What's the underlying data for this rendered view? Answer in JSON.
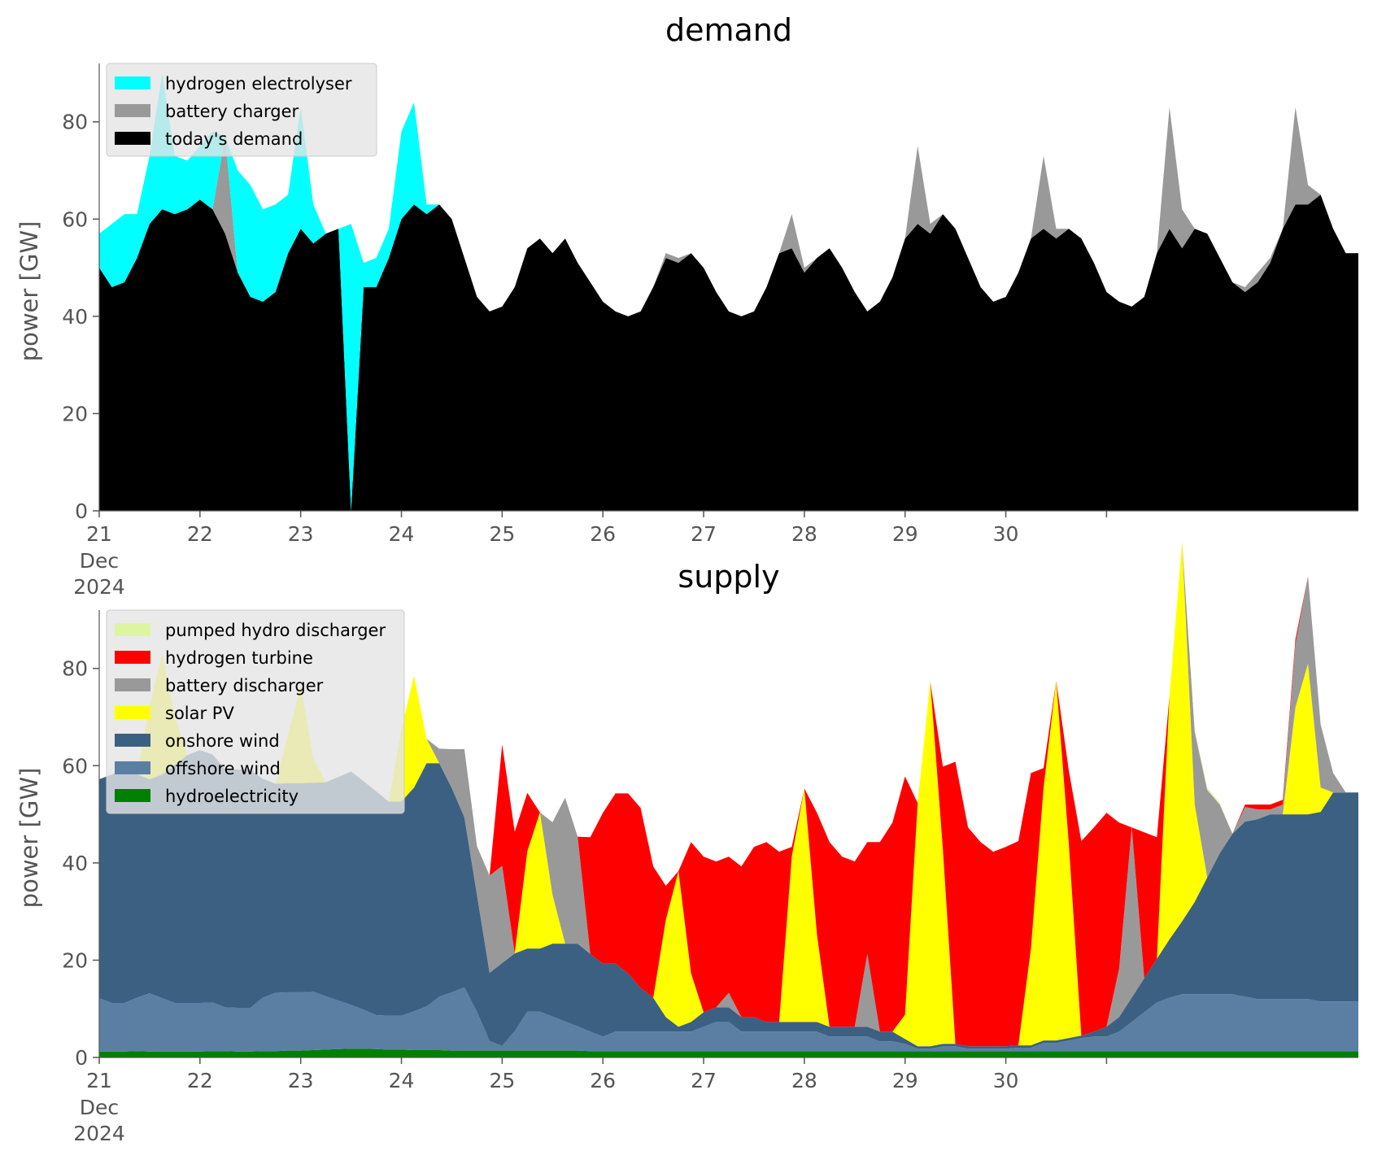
{
  "chart_data": [
    {
      "type": "area",
      "title": "demand",
      "ylabel": "power [GW]",
      "xlabel": "",
      "ylim": [
        0,
        92
      ],
      "yticks": [
        "0",
        "20",
        "40",
        "60",
        "80"
      ],
      "x_start": "2024-12-21T00:00",
      "x_step_hours": 3,
      "xticks": [
        "21",
        "22",
        "23",
        "24",
        "25",
        "26",
        "27",
        "28",
        "29",
        "30"
      ],
      "xtick_sub": [
        "Dec",
        "2024"
      ],
      "grid": false,
      "legend_position": "top-left",
      "series": [
        {
          "name": "today's demand",
          "color": "#000000",
          "values": [
            50,
            46,
            47,
            52,
            59,
            62,
            61,
            62,
            64,
            62,
            57,
            49,
            44,
            43,
            45,
            53,
            58,
            55,
            57,
            58,
            0,
            46,
            46,
            52,
            60,
            63,
            61,
            63,
            60,
            52,
            44,
            41,
            42,
            46,
            54,
            56,
            53,
            56,
            51,
            47,
            43,
            41,
            40,
            41,
            46,
            52,
            51,
            53,
            50,
            45,
            41,
            40,
            41,
            46,
            53,
            54,
            49,
            52,
            54,
            50,
            45,
            41,
            43,
            48,
            56,
            59,
            57,
            61,
            58,
            52,
            46,
            43,
            44,
            49,
            56,
            58,
            56,
            58,
            56,
            51,
            45,
            43,
            42,
            44,
            53,
            58,
            54,
            58,
            57,
            52,
            47,
            45,
            47,
            51,
            58,
            63,
            63,
            65,
            58,
            53
          ]
        },
        {
          "name": "battery charger",
          "color": "#999999",
          "values": [
            0,
            0,
            0,
            0,
            0,
            0,
            0,
            0,
            0,
            0,
            20,
            0,
            0,
            0,
            0,
            0,
            0,
            0,
            0,
            0,
            0,
            0,
            0,
            0,
            0,
            0,
            0,
            0,
            0,
            0,
            0,
            0,
            0,
            0,
            0,
            0,
            0,
            0,
            0,
            0,
            0,
            0,
            0,
            0,
            0,
            1,
            1,
            0,
            0,
            0,
            0,
            0,
            0,
            0,
            0,
            7,
            1,
            0,
            0,
            0,
            0,
            0,
            0,
            0,
            0,
            16,
            2,
            0,
            0,
            0,
            0,
            0,
            0,
            0,
            0,
            15,
            2,
            0,
            0,
            0,
            0,
            0,
            0,
            0,
            0,
            25,
            8,
            0,
            0,
            0,
            0,
            1,
            2,
            1,
            0,
            20,
            4,
            0,
            0,
            0
          ]
        },
        {
          "name": "hydrogen electrolyser",
          "color": "#00ffff",
          "values": [
            7,
            13,
            14,
            9,
            14,
            28,
            12,
            10,
            11,
            16,
            0,
            21,
            23,
            19,
            18,
            12,
            25,
            8,
            0,
            0,
            59,
            5,
            6,
            6,
            18,
            21,
            2,
            0,
            0,
            0,
            0,
            0,
            0,
            0,
            0,
            0,
            0,
            0,
            0,
            0,
            0,
            0,
            0,
            0,
            0,
            0,
            0,
            0,
            0,
            0,
            0,
            0,
            0,
            0,
            0,
            0,
            0,
            0,
            0,
            0,
            0,
            0,
            0,
            0,
            0,
            0,
            0,
            0,
            0,
            0,
            0,
            0,
            0,
            0,
            0,
            0,
            0,
            0,
            0,
            0,
            0,
            0,
            0,
            0,
            0,
            0,
            0,
            0,
            0,
            0,
            0,
            0,
            0,
            0,
            0,
            0,
            0,
            0,
            0,
            0
          ]
        }
      ]
    },
    {
      "type": "area",
      "title": "supply",
      "ylabel": "power [GW]",
      "xlabel": "",
      "ylim": [
        0,
        92
      ],
      "yticks": [
        "0",
        "20",
        "40",
        "60",
        "80"
      ],
      "x_start": "2024-12-21T00:00",
      "x_step_hours": 3,
      "xticks": [
        "21",
        "22",
        "23",
        "24",
        "25",
        "26",
        "27",
        "28",
        "29",
        "30"
      ],
      "xtick_sub": [
        "Dec",
        "2024"
      ],
      "grid": false,
      "legend_position": "top-left",
      "series": [
        {
          "name": "hydroelectricity",
          "color": "#008000",
          "values": [
            1.2,
            1.2,
            1.2,
            1.3,
            1.2,
            1.2,
            1.2,
            1.2,
            1.2,
            1.3,
            1.3,
            1.2,
            1.2,
            1.3,
            1.3,
            1.4,
            1.4,
            1.5,
            1.6,
            1.7,
            1.8,
            1.8,
            1.7,
            1.6,
            1.6,
            1.5,
            1.5,
            1.5,
            1.4,
            1.4,
            1.4,
            1.4,
            1.4,
            1.4,
            1.4,
            1.4,
            1.4,
            1.4,
            1.4,
            1.3,
            1.3,
            1.3,
            1.3,
            1.3,
            1.3,
            1.3,
            1.3,
            1.3,
            1.3,
            1.3,
            1.3,
            1.3,
            1.3,
            1.3,
            1.3,
            1.3,
            1.3,
            1.3,
            1.3,
            1.3,
            1.3,
            1.3,
            1.3,
            1.3,
            1.3,
            1.3,
            1.3,
            1.3,
            1.3,
            1.3,
            1.3,
            1.3,
            1.3,
            1.3,
            1.3,
            1.3,
            1.3,
            1.3,
            1.3,
            1.3,
            1.3,
            1.3,
            1.3,
            1.3,
            1.3,
            1.3,
            1.3,
            1.3,
            1.3,
            1.3,
            1.3,
            1.3,
            1.3,
            1.3,
            1.3,
            1.3,
            1.3,
            1.3,
            1.3,
            1.3
          ]
        },
        {
          "name": "offshore wind",
          "color": "#5b7fa3",
          "values": [
            11,
            10,
            10,
            11,
            12,
            11,
            10,
            10,
            10,
            10,
            9,
            9,
            9,
            11,
            12,
            12,
            12,
            12,
            11,
            10,
            9,
            8,
            7,
            7,
            7,
            8,
            9,
            11,
            12,
            13,
            8,
            2,
            1,
            4,
            8,
            8,
            7,
            6,
            5,
            4,
            3,
            4,
            4,
            4,
            4,
            4,
            4,
            4,
            5,
            6,
            6,
            4,
            4,
            4,
            4,
            4,
            4,
            4,
            3,
            3,
            3,
            3,
            2,
            2,
            1.5,
            0.5,
            0.5,
            1,
            1,
            0.5,
            0.5,
            0.5,
            0.5,
            0.7,
            0.7,
            1.7,
            1.7,
            2.2,
            2.7,
            3,
            3,
            4,
            6,
            8,
            10,
            11,
            11.7,
            11.7,
            11.7,
            11.7,
            11.7,
            11.2,
            10.7,
            10.7,
            10.7,
            10.7,
            10.7,
            10.2,
            10.2,
            10.2
          ]
        },
        {
          "name": "onshore wind",
          "color": "#3b6082",
          "values": [
            45,
            47,
            48,
            46,
            44,
            46,
            49,
            51,
            52,
            51,
            49,
            49,
            49,
            45,
            43,
            43,
            43,
            43,
            44,
            46,
            48,
            47,
            46,
            44,
            44,
            46,
            50,
            48,
            42,
            35,
            24,
            14,
            17,
            16,
            13,
            13,
            15,
            16,
            17,
            16,
            15,
            14,
            12,
            9,
            7,
            3,
            1,
            2,
            3,
            3,
            3,
            3,
            3,
            2,
            2,
            2,
            2,
            2,
            2,
            2,
            2,
            2,
            2,
            2,
            1,
            0.5,
            0.5,
            0.5,
            0.5,
            0.5,
            0.5,
            0.5,
            0.5,
            0.5,
            0.5,
            0.5,
            0.5,
            0.5,
            0.5,
            1,
            2,
            3,
            5,
            7,
            9,
            12,
            15,
            19,
            24,
            29,
            33,
            36,
            37,
            38,
            38,
            38,
            38,
            39,
            43,
            43
          ]
        },
        {
          "name": "solar PV",
          "color": "#ffff00",
          "values": [
            0,
            0,
            0,
            0,
            15,
            25,
            10,
            0,
            0,
            0,
            0,
            0,
            0,
            0,
            0,
            10,
            20,
            5,
            0,
            0,
            0,
            0,
            0,
            0,
            15,
            23,
            5,
            0,
            0,
            0,
            0,
            0,
            0,
            0,
            20,
            28,
            10,
            0,
            0,
            0,
            0,
            0,
            0,
            0,
            0,
            20,
            32,
            10,
            0,
            0,
            0,
            0,
            0,
            0,
            0,
            34,
            48,
            18,
            0,
            0,
            0,
            0,
            0,
            0,
            5,
            50,
            75,
            40,
            0,
            0,
            0,
            0,
            0,
            0,
            20,
            52,
            74,
            40,
            0,
            0,
            0,
            0,
            0,
            0,
            0,
            50,
            78,
            20,
            0,
            0,
            0,
            0,
            0,
            0,
            0,
            22,
            31,
            5,
            0,
            0
          ]
        },
        {
          "name": "battery discharger",
          "color": "#999999",
          "values": [
            0,
            0,
            0,
            0,
            0,
            0,
            0,
            0,
            0,
            0,
            0,
            0,
            0,
            0,
            0,
            0,
            0,
            0,
            0,
            0,
            0,
            0,
            0,
            0,
            0,
            0,
            0,
            3,
            8,
            14,
            10,
            20,
            20,
            0,
            0,
            0,
            15,
            30,
            22,
            0,
            0,
            0,
            0,
            0,
            0,
            0,
            0,
            0,
            0,
            0,
            3,
            0,
            0,
            0,
            0,
            0,
            0,
            0,
            0,
            0,
            0,
            15,
            0,
            0,
            0,
            0,
            0,
            0,
            0,
            0,
            0,
            0,
            0,
            0,
            0,
            0,
            0,
            0,
            0,
            0,
            0,
            10,
            35,
            0,
            0,
            0,
            0,
            15,
            18,
            10,
            0,
            3,
            2,
            1,
            2,
            13,
            18,
            13,
            4,
            0
          ]
        },
        {
          "name": "hydrogen turbine",
          "color": "#ff0000",
          "values": [
            0,
            0,
            0,
            0,
            0,
            0,
            0,
            0,
            0,
            0,
            0,
            0,
            0,
            0,
            0,
            0,
            0,
            0,
            0,
            0,
            0,
            0,
            0,
            0,
            0,
            0,
            0,
            0,
            0,
            0,
            0,
            0,
            25,
            25,
            12,
            0,
            0,
            0,
            0,
            24,
            31,
            35,
            37,
            37,
            27,
            7,
            0,
            27,
            32,
            30,
            28,
            31,
            35,
            37,
            35,
            2,
            0,
            25,
            38,
            35,
            34,
            23,
            39,
            43,
            49,
            0,
            0,
            17,
            58,
            45,
            42,
            40,
            41,
            42,
            36,
            4,
            0,
            15,
            40,
            42,
            44,
            30,
            0,
            30,
            25,
            0,
            0,
            0,
            0,
            0,
            0,
            0.5,
            1,
            1,
            1,
            1,
            0,
            0,
            0,
            0
          ]
        },
        {
          "name": "pumped hydro discharger",
          "color": "#ddf5a0",
          "values": [
            0,
            0,
            0,
            0,
            0,
            0,
            0,
            0,
            0,
            0,
            0,
            0,
            0,
            0,
            0,
            0,
            0,
            0,
            0,
            0,
            0,
            0,
            0,
            0,
            0,
            0,
            0,
            0,
            0,
            0,
            0,
            0,
            0,
            0,
            0,
            0,
            0,
            0,
            0,
            0,
            0,
            0,
            0,
            0,
            0,
            0,
            0,
            0,
            0,
            0,
            0,
            0,
            0,
            0,
            0,
            0,
            0,
            0,
            0,
            0,
            0,
            0,
            0,
            0,
            0,
            0,
            0,
            0,
            0,
            0,
            0,
            0,
            0,
            0,
            0,
            0,
            0,
            0,
            0,
            0,
            0,
            0,
            0,
            0,
            0,
            0,
            0,
            0.5,
            0.5,
            0.3,
            0,
            0,
            0,
            0,
            0,
            0,
            0,
            0,
            0,
            0
          ]
        }
      ],
      "legend_order": [
        "pumped hydro discharger",
        "hydrogen turbine",
        "battery discharger",
        "solar PV",
        "onshore wind",
        "offshore wind",
        "hydroelectricity"
      ]
    }
  ]
}
